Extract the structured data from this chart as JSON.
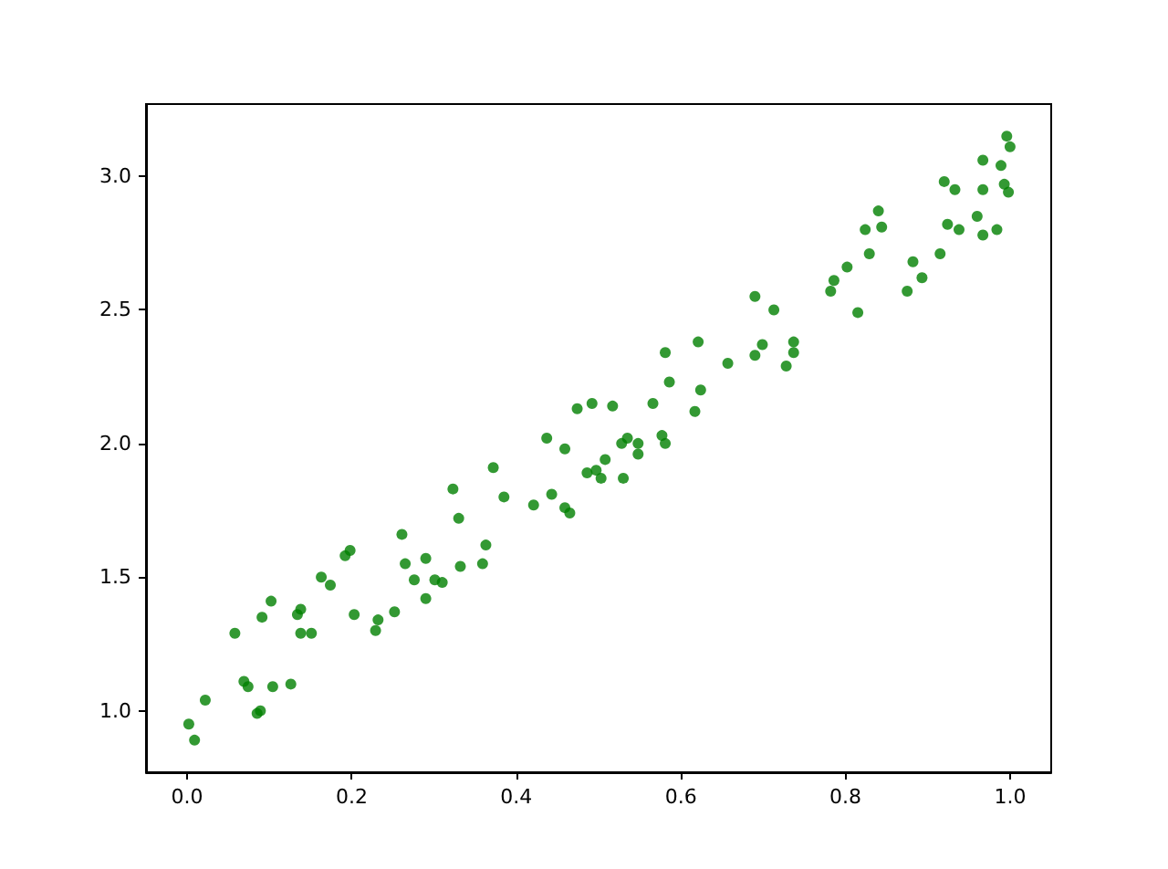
{
  "chart_data": {
    "type": "scatter",
    "marker": "circle",
    "grid": false,
    "x": [
      0.002,
      0.009,
      0.022,
      0.058,
      0.069,
      0.074,
      0.085,
      0.089,
      0.091,
      0.102,
      0.104,
      0.126,
      0.134,
      0.138,
      0.138,
      0.151,
      0.163,
      0.174,
      0.192,
      0.198,
      0.203,
      0.229,
      0.232,
      0.252,
      0.261,
      0.265,
      0.276,
      0.29,
      0.29,
      0.301,
      0.31,
      0.323,
      0.33,
      0.332,
      0.359,
      0.363,
      0.372,
      0.385,
      0.421,
      0.437,
      0.443,
      0.459,
      0.459,
      0.465,
      0.474,
      0.486,
      0.492,
      0.497,
      0.503,
      0.508,
      0.517,
      0.528,
      0.53,
      0.535,
      0.548,
      0.548,
      0.566,
      0.577,
      0.581,
      0.581,
      0.586,
      0.617,
      0.621,
      0.624,
      0.657,
      0.69,
      0.69,
      0.699,
      0.713,
      0.728,
      0.737,
      0.737,
      0.782,
      0.786,
      0.802,
      0.815,
      0.824,
      0.829,
      0.84,
      0.844,
      0.875,
      0.882,
      0.893,
      0.915,
      0.92,
      0.924,
      0.933,
      0.938,
      0.96,
      0.967,
      0.967,
      0.967,
      0.984,
      0.989,
      0.993,
      0.996,
      0.998,
      1.0
    ],
    "series": [
      {
        "color": "#008000",
        "values": [
          0.95,
          0.89,
          1.04,
          1.29,
          1.11,
          1.09,
          0.99,
          1.0,
          1.35,
          1.41,
          1.09,
          1.1,
          1.36,
          1.38,
          1.29,
          1.29,
          1.5,
          1.47,
          1.58,
          1.6,
          1.36,
          1.3,
          1.34,
          1.37,
          1.66,
          1.55,
          1.49,
          1.57,
          1.42,
          1.49,
          1.48,
          1.83,
          1.72,
          1.54,
          1.55,
          1.62,
          1.91,
          1.8,
          1.77,
          2.02,
          1.81,
          1.98,
          1.76,
          1.74,
          2.13,
          1.89,
          2.15,
          1.9,
          1.87,
          1.94,
          2.14,
          2.0,
          1.87,
          2.02,
          2.0,
          1.96,
          2.15,
          2.03,
          2.0,
          2.34,
          2.23,
          2.12,
          2.38,
          2.2,
          2.3,
          2.33,
          2.55,
          2.37,
          2.5,
          2.29,
          2.34,
          2.38,
          2.57,
          2.61,
          2.66,
          2.49,
          2.8,
          2.71,
          2.87,
          2.81,
          2.57,
          2.68,
          2.62,
          2.71,
          2.98,
          2.82,
          2.95,
          2.8,
          2.85,
          3.06,
          2.95,
          2.78,
          2.8,
          3.04,
          2.97,
          3.15,
          2.94,
          3.11
        ]
      }
    ],
    "xlim": [
      -0.05,
      1.05
    ],
    "ylim": [
      0.77,
      3.27
    ],
    "xticks": [
      {
        "value": 0,
        "label": "0.0"
      },
      0.2,
      0.4,
      0.6,
      0.8,
      {
        "value": 1,
        "label": "1.0"
      }
    ],
    "yticks": [
      {
        "value": 1,
        "label": "1.0"
      },
      1.5,
      {
        "value": 2,
        "label": "2.0"
      },
      2.5,
      {
        "value": 3,
        "label": "3.0"
      }
    ]
  }
}
